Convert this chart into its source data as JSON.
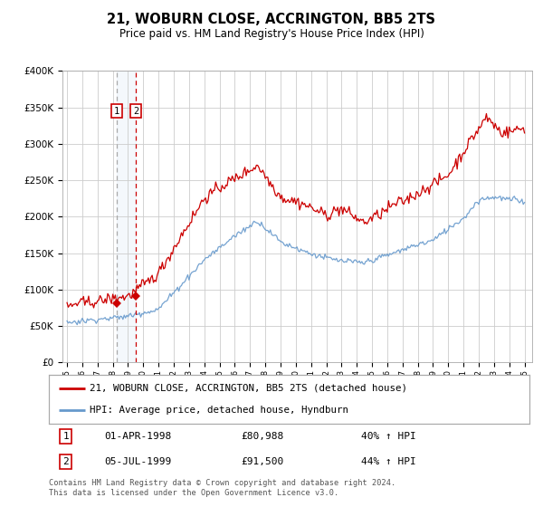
{
  "title": "21, WOBURN CLOSE, ACCRINGTON, BB5 2TS",
  "subtitle": "Price paid vs. HM Land Registry's House Price Index (HPI)",
  "legend_line1": "21, WOBURN CLOSE, ACCRINGTON, BB5 2TS (detached house)",
  "legend_line2": "HPI: Average price, detached house, Hyndburn",
  "footer": "Contains HM Land Registry data © Crown copyright and database right 2024.\nThis data is licensed under the Open Government Licence v3.0.",
  "sale1_date": "01-APR-1998",
  "sale1_price": "£80,988",
  "sale1_hpi": "40% ↑ HPI",
  "sale2_date": "05-JUL-1999",
  "sale2_price": "£91,500",
  "sale2_hpi": "44% ↑ HPI",
  "sale1_year": 1998.25,
  "sale1_value": 80988,
  "sale2_year": 1999.5,
  "sale2_value": 91500,
  "red_color": "#cc0000",
  "blue_color": "#6699cc",
  "background_color": "#ffffff",
  "grid_color": "#cccccc",
  "ylim": [
    0,
    400000
  ],
  "xlim": [
    1994.7,
    2025.5
  ]
}
